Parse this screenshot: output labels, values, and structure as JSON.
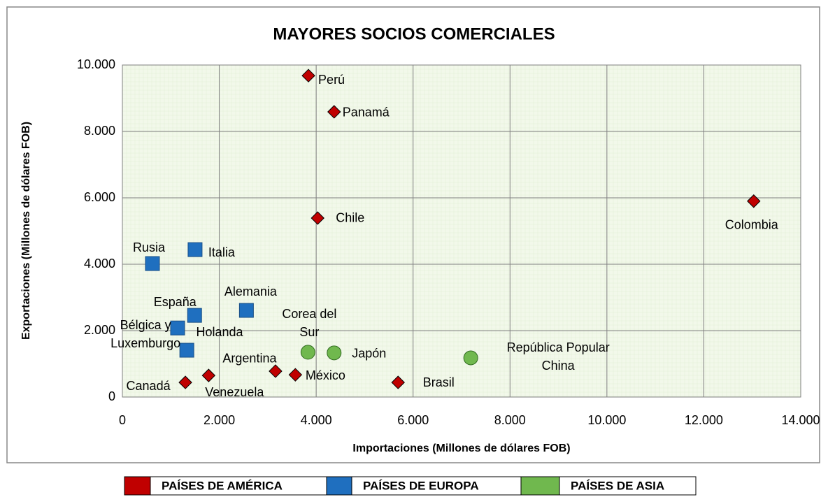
{
  "chart_data": {
    "type": "scatter",
    "title": "MAYORES SOCIOS COMERCIALES",
    "x_label": "Importaciones  (Millones de dólares FOB)",
    "y_label": "Exportaciones (Millones de dólares FOB)",
    "xlim": [
      0,
      14000
    ],
    "ylim": [
      0,
      10000
    ],
    "xticks": [
      {
        "value": 0,
        "label": "0"
      },
      {
        "value": 2000,
        "label": "2.000"
      },
      {
        "value": 4000,
        "label": "4.000"
      },
      {
        "value": 6000,
        "label": "6.000"
      },
      {
        "value": 8000,
        "label": "8.000"
      },
      {
        "value": 10000,
        "label": "10.000"
      },
      {
        "value": 12000,
        "label": "12.000"
      },
      {
        "value": 14000,
        "label": "14.000"
      }
    ],
    "yticks": [
      {
        "value": 0,
        "label": "0"
      },
      {
        "value": 2000,
        "label": "2.000"
      },
      {
        "value": 4000,
        "label": "4.000"
      },
      {
        "value": 6000,
        "label": "6.000"
      },
      {
        "value": 8000,
        "label": "8.000"
      },
      {
        "value": 10000,
        "label": "10.000"
      }
    ],
    "grid": true,
    "legend": "bottom",
    "series": [
      {
        "name": "PAÍSES DE AMÉRICA",
        "color": "#c00000",
        "marker": "diamond",
        "labels": [
          "Perú",
          "Panamá",
          "Chile",
          "Colombia",
          "Canadá",
          "Venezuela",
          "Argentina",
          "México",
          "Brasil"
        ],
        "x": [
          3840,
          4370,
          4030,
          13030,
          1300,
          1780,
          3160,
          3570,
          5690
        ],
        "values": [
          9680,
          8590,
          5390,
          5900,
          440,
          650,
          780,
          670,
          440
        ]
      },
      {
        "name": "PAÍSES DE EUROPA",
        "color": "#1f6fbf",
        "marker": "square",
        "labels": [
          "Rusia",
          "Italia",
          "Alemania",
          "España",
          "Holanda",
          "Bélgica y\nLuxemburgo"
        ],
        "x": [
          620,
          1500,
          2560,
          1490,
          1140,
          1330
        ],
        "values": [
          4020,
          4440,
          2610,
          2460,
          2080,
          1410
        ]
      },
      {
        "name": "PAÍSES DE ASIA",
        "color": "#70b84e",
        "marker": "circle",
        "labels": [
          "Corea del\nSur",
          "Japón",
          "República Popular\nChina"
        ],
        "x": [
          3830,
          4370,
          7190
        ],
        "values": [
          1350,
          1330,
          1180
        ]
      }
    ]
  }
}
